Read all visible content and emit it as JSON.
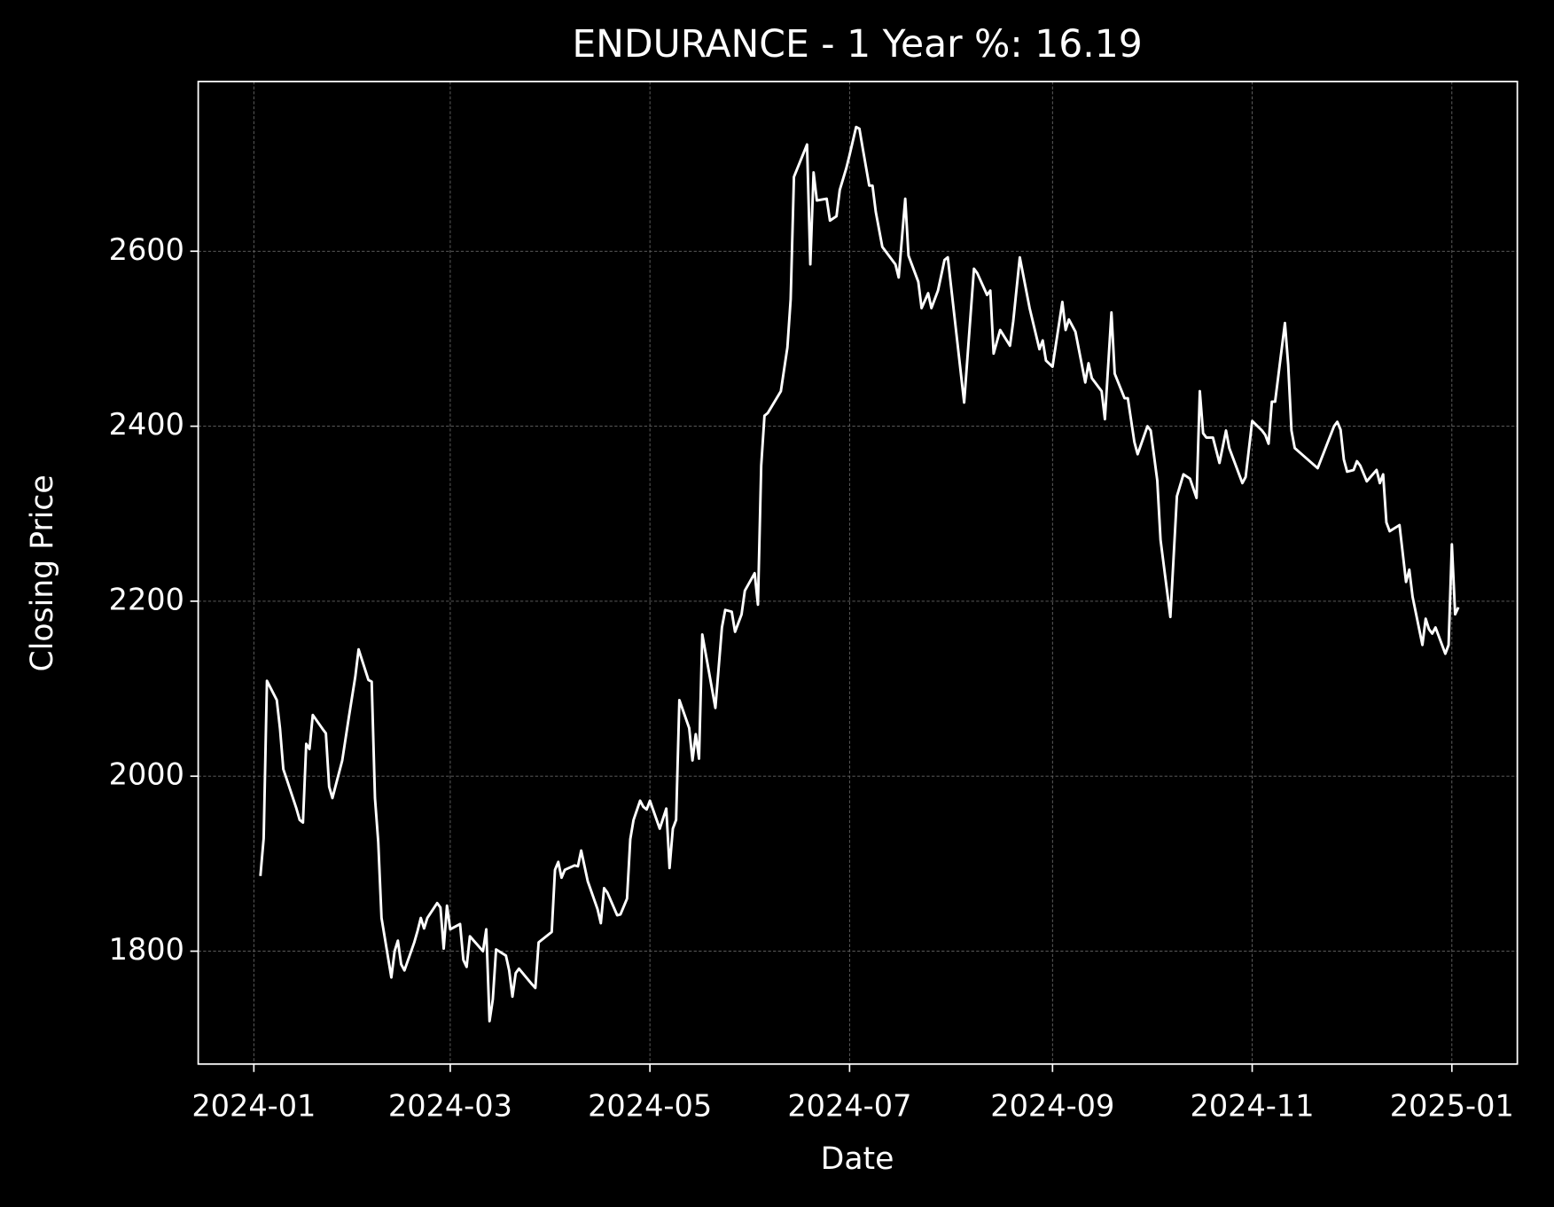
{
  "chart_data": {
    "type": "line",
    "title": "ENDURANCE - 1 Year %: 16.19",
    "x_label": "Date",
    "y_label": "Closing Price",
    "grid": true,
    "x": [
      "2024-01-03",
      "2024-01-04",
      "2024-01-05",
      "2024-01-08",
      "2024-01-09",
      "2024-01-10",
      "2024-01-11",
      "2024-01-14",
      "2024-01-15",
      "2024-01-16",
      "2024-01-17",
      "2024-01-18",
      "2024-01-19",
      "2024-01-22",
      "2024-01-23",
      "2024-01-24",
      "2024-01-25",
      "2024-01-28",
      "2024-01-30",
      "2024-02-01",
      "2024-02-02",
      "2024-02-05",
      "2024-02-06",
      "2024-02-07",
      "2024-02-08",
      "2024-02-09",
      "2024-02-12",
      "2024-02-13",
      "2024-02-14",
      "2024-02-15",
      "2024-02-16",
      "2024-02-19",
      "2024-02-20",
      "2024-02-21",
      "2024-02-22",
      "2024-02-23",
      "2024-02-26",
      "2024-02-27",
      "2024-02-28",
      "2024-02-29",
      "2024-03-01",
      "2024-03-04",
      "2024-03-05",
      "2024-03-06",
      "2024-03-07",
      "2024-03-11",
      "2024-03-12",
      "2024-03-13",
      "2024-03-14",
      "2024-03-15",
      "2024-03-18",
      "2024-03-19",
      "2024-03-20",
      "2024-03-21",
      "2024-03-22",
      "2024-03-26",
      "2024-03-27",
      "2024-03-28",
      "2024-04-01",
      "2024-04-02",
      "2024-04-03",
      "2024-04-04",
      "2024-04-05",
      "2024-04-08",
      "2024-04-09",
      "2024-04-10",
      "2024-04-12",
      "2024-04-15",
      "2024-04-16",
      "2024-04-17",
      "2024-04-18",
      "2024-04-21",
      "2024-04-22",
      "2024-04-24",
      "2024-04-25",
      "2024-04-26",
      "2024-04-28",
      "2024-04-29",
      "2024-04-30",
      "2024-05-01",
      "2024-05-04",
      "2024-05-06",
      "2024-05-07",
      "2024-05-08",
      "2024-05-09",
      "2024-05-10",
      "2024-05-13",
      "2024-05-14",
      "2024-05-15",
      "2024-05-16",
      "2024-05-17",
      "2024-05-19",
      "2024-05-21",
      "2024-05-23",
      "2024-05-24",
      "2024-05-26",
      "2024-05-27",
      "2024-05-29",
      "2024-05-30",
      "2024-06-02",
      "2024-06-03",
      "2024-06-04",
      "2024-06-05",
      "2024-06-06",
      "2024-06-10",
      "2024-06-12",
      "2024-06-13",
      "2024-06-14",
      "2024-06-18",
      "2024-06-19",
      "2024-06-20",
      "2024-06-21",
      "2024-06-24",
      "2024-06-25",
      "2024-06-27",
      "2024-06-28",
      "2024-06-30",
      "2024-07-01",
      "2024-07-03",
      "2024-07-04",
      "2024-07-05",
      "2024-07-07",
      "2024-07-08",
      "2024-07-09",
      "2024-07-11",
      "2024-07-15",
      "2024-07-16",
      "2024-07-18",
      "2024-07-19",
      "2024-07-22",
      "2024-07-23",
      "2024-07-25",
      "2024-07-26",
      "2024-07-28",
      "2024-07-30",
      "2024-07-31",
      "2024-08-05",
      "2024-08-08",
      "2024-08-09",
      "2024-08-12",
      "2024-08-13",
      "2024-08-14",
      "2024-08-16",
      "2024-08-19",
      "2024-08-20",
      "2024-08-22",
      "2024-08-25",
      "2024-08-28",
      "2024-08-29",
      "2024-08-30",
      "2024-09-01",
      "2024-09-04",
      "2024-09-05",
      "2024-09-06",
      "2024-09-08",
      "2024-09-11",
      "2024-09-12",
      "2024-09-13",
      "2024-09-16",
      "2024-09-17",
      "2024-09-19",
      "2024-09-20",
      "2024-09-23",
      "2024-09-24",
      "2024-09-26",
      "2024-09-27",
      "2024-09-30",
      "2024-10-01",
      "2024-10-03",
      "2024-10-04",
      "2024-10-07",
      "2024-10-09",
      "2024-10-11",
      "2024-10-13",
      "2024-10-15",
      "2024-10-16",
      "2024-10-17",
      "2024-10-18",
      "2024-10-20",
      "2024-10-22",
      "2024-10-24",
      "2024-10-25",
      "2024-10-27",
      "2024-10-29",
      "2024-10-30",
      "2024-11-01",
      "2024-11-04",
      "2024-11-05",
      "2024-11-06",
      "2024-11-07",
      "2024-11-08",
      "2024-11-11",
      "2024-11-12",
      "2024-11-13",
      "2024-11-14",
      "2024-11-21",
      "2024-11-26",
      "2024-11-27",
      "2024-11-28",
      "2024-11-29",
      "2024-11-30",
      "2024-12-02",
      "2024-12-03",
      "2024-12-04",
      "2024-12-06",
      "2024-12-09",
      "2024-12-10",
      "2024-12-11",
      "2024-12-12",
      "2024-12-13",
      "2024-12-16",
      "2024-12-18",
      "2024-12-19",
      "2024-12-20",
      "2024-12-23",
      "2024-12-24",
      "2024-12-25",
      "2024-12-26",
      "2024-12-27",
      "2024-12-30",
      "2024-12-31",
      "2025-01-01",
      "2025-01-02",
      "2025-01-03"
    ],
    "series": [
      {
        "name": "Closing Price",
        "color": "#ffffff",
        "values": [
          1886,
          1929,
          2109,
          2087,
          2054,
          2008,
          1997,
          1963,
          1950,
          1947,
          2037,
          2031,
          2070,
          2054,
          2049,
          1988,
          1975,
          2018,
          2067,
          2114,
          2145,
          2110,
          2108,
          1975,
          1925,
          1838,
          1770,
          1800,
          1812,
          1785,
          1778,
          1810,
          1823,
          1838,
          1826,
          1838,
          1855,
          1850,
          1803,
          1852,
          1825,
          1831,
          1790,
          1782,
          1817,
          1800,
          1825,
          1720,
          1745,
          1802,
          1795,
          1778,
          1748,
          1775,
          1780,
          1762,
          1758,
          1810,
          1822,
          1893,
          1902,
          1884,
          1893,
          1898,
          1897,
          1915,
          1880,
          1848,
          1832,
          1872,
          1867,
          1841,
          1842,
          1860,
          1928,
          1950,
          1972,
          1965,
          1962,
          1972,
          1940,
          1963,
          1895,
          1940,
          1950,
          2087,
          2055,
          2018,
          2048,
          2020,
          2162,
          2120,
          2078,
          2170,
          2190,
          2188,
          2165,
          2185,
          2212,
          2232,
          2196,
          2355,
          2412,
          2415,
          2440,
          2490,
          2545,
          2685,
          2722,
          2585,
          2690,
          2658,
          2660,
          2635,
          2640,
          2670,
          2695,
          2710,
          2742,
          2740,
          2718,
          2675,
          2675,
          2645,
          2605,
          2585,
          2570,
          2660,
          2595,
          2565,
          2535,
          2552,
          2535,
          2555,
          2590,
          2593,
          2427,
          2580,
          2575,
          2550,
          2555,
          2483,
          2510,
          2492,
          2520,
          2593,
          2535,
          2488,
          2498,
          2475,
          2468,
          2542,
          2510,
          2522,
          2508,
          2450,
          2472,
          2455,
          2440,
          2408,
          2530,
          2460,
          2432,
          2432,
          2382,
          2368,
          2400,
          2395,
          2338,
          2270,
          2182,
          2320,
          2345,
          2340,
          2318,
          2440,
          2392,
          2387,
          2387,
          2358,
          2395,
          2375,
          2355,
          2335,
          2342,
          2406,
          2395,
          2390,
          2380,
          2428,
          2428,
          2518,
          2470,
          2395,
          2375,
          2352,
          2400,
          2405,
          2396,
          2362,
          2348,
          2350,
          2360,
          2355,
          2337,
          2350,
          2335,
          2345,
          2290,
          2280,
          2287,
          2222,
          2236,
          2205,
          2150,
          2180,
          2168,
          2163,
          2170,
          2140,
          2150,
          2265,
          2185,
          2193
        ]
      }
    ],
    "xlim": [
      "2023-12-15",
      "2025-01-21"
    ],
    "xticks": [
      "2024-01",
      "2024-03",
      "2024-05",
      "2024-07",
      "2024-09",
      "2024-11",
      "2025-01"
    ],
    "ylim": [
      1671,
      2794
    ],
    "yticks": [
      1800,
      2000,
      2200,
      2400,
      2600
    ]
  }
}
